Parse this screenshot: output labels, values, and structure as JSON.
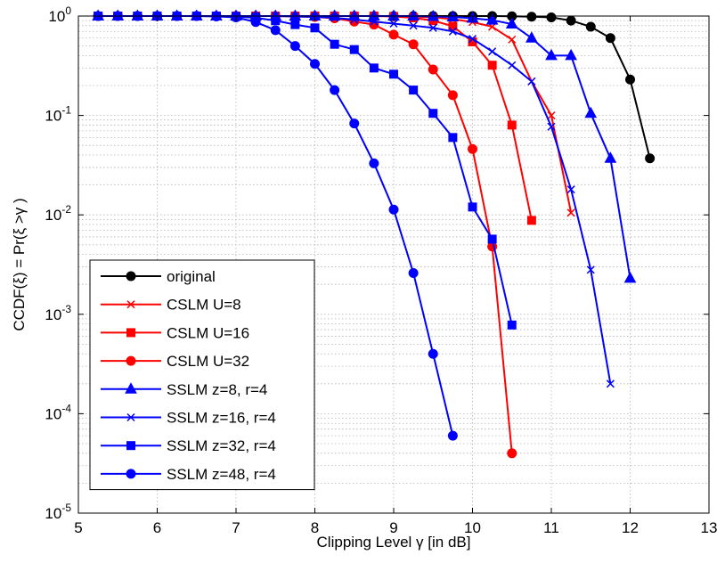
{
  "chart_data": {
    "type": "line",
    "xlabel": "Clipping Level γ [in dB]",
    "ylabel": "CCDF(ξ) = Pr(ξ >γ )",
    "xlim": [
      5,
      13
    ],
    "ylim": [
      1e-05,
      1
    ],
    "yscale": "log",
    "xticks": [
      "5",
      "6",
      "7",
      "8",
      "9",
      "10",
      "11",
      "12",
      "13"
    ],
    "yticks": [
      {
        "base": "10",
        "exp": "0"
      },
      {
        "base": "10",
        "exp": "-1"
      },
      {
        "base": "10",
        "exp": "-2"
      },
      {
        "base": "10",
        "exp": "-3"
      },
      {
        "base": "10",
        "exp": "-4"
      },
      {
        "base": "10",
        "exp": "-5"
      }
    ],
    "grid": true,
    "legend_position": "bottom-left",
    "series": [
      {
        "name": "original",
        "color": "#000000",
        "marker": "circle",
        "x": [
          5.25,
          5.5,
          5.75,
          6,
          6.25,
          6.5,
          6.75,
          7,
          7.25,
          7.5,
          7.75,
          8,
          8.25,
          8.5,
          8.75,
          9,
          9.25,
          9.5,
          9.75,
          10,
          10.25,
          10.5,
          10.75,
          11,
          11.25,
          11.5,
          11.75,
          12,
          12.25
        ],
        "y": [
          1,
          1,
          1,
          1,
          1,
          1,
          1,
          1,
          1,
          1,
          1,
          1,
          1,
          1,
          1,
          1,
          1,
          1,
          1,
          1,
          1,
          0.995,
          0.985,
          0.97,
          0.9,
          0.78,
          0.6,
          0.23,
          0.037
        ]
      },
      {
        "name": "CSLM U=8",
        "color": "#ff0000",
        "marker": "x",
        "x": [
          5.25,
          5.5,
          5.75,
          6,
          6.25,
          6.5,
          6.75,
          7,
          7.25,
          7.5,
          7.75,
          8,
          8.25,
          8.5,
          8.75,
          9,
          9.25,
          9.5,
          9.75,
          10,
          10.25,
          10.5,
          10.75,
          11,
          11.25
        ],
        "y": [
          1,
          1,
          1,
          1,
          1,
          1,
          1,
          1,
          1,
          1,
          1,
          1,
          1,
          1,
          1,
          1,
          0.99,
          0.97,
          0.93,
          0.87,
          0.78,
          0.58,
          0.22,
          0.1,
          0.0105
        ]
      },
      {
        "name": "CSLM U=16",
        "color": "#ff0000",
        "marker": "square",
        "x": [
          5.25,
          5.5,
          5.75,
          6,
          6.25,
          6.5,
          6.75,
          7,
          7.25,
          7.5,
          7.75,
          8,
          8.25,
          8.5,
          8.75,
          9,
          9.25,
          9.5,
          9.75,
          10,
          10.25,
          10.5,
          10.75
        ],
        "y": [
          1,
          1,
          1,
          1,
          1,
          1,
          1,
          1,
          1,
          1,
          1,
          1,
          1,
          1,
          1,
          0.99,
          0.96,
          0.9,
          0.79,
          0.55,
          0.32,
          0.08,
          0.0088
        ]
      },
      {
        "name": "CSLM U=32",
        "color": "#ff0000",
        "marker": "circle",
        "x": [
          5.25,
          5.5,
          5.75,
          6,
          6.25,
          6.5,
          6.75,
          7,
          7.25,
          7.5,
          7.75,
          8,
          8.25,
          8.5,
          8.75,
          9,
          9.25,
          9.5,
          9.75,
          10,
          10.25,
          10.5
        ],
        "y": [
          1,
          1,
          1,
          1,
          1,
          1,
          1,
          1,
          1,
          1,
          0.99,
          0.98,
          0.95,
          0.88,
          0.82,
          0.65,
          0.52,
          0.29,
          0.16,
          0.046,
          0.0048,
          4e-05
        ]
      },
      {
        "name": "SSLM z=8, r=4",
        "color": "#0000ff",
        "marker": "triangle",
        "x": [
          5.25,
          5.5,
          5.75,
          6,
          6.25,
          6.5,
          6.75,
          7,
          7.25,
          7.5,
          7.75,
          8,
          8.25,
          8.5,
          8.75,
          9,
          9.25,
          9.5,
          9.75,
          10,
          10.25,
          10.5,
          10.75,
          11,
          11.25,
          11.5,
          11.75,
          12
        ],
        "y": [
          1,
          1,
          1,
          1,
          1,
          1,
          1,
          1,
          1,
          1,
          1,
          1,
          1,
          1,
          1,
          1,
          1,
          0.99,
          0.98,
          0.95,
          0.91,
          0.83,
          0.6,
          0.4,
          0.4,
          0.105,
          0.037,
          0.0023
        ]
      },
      {
        "name": "SSLM z=16, r=4",
        "color": "#0000ff",
        "marker": "x",
        "x": [
          5.25,
          5.5,
          5.75,
          6,
          6.25,
          6.5,
          6.75,
          7,
          7.25,
          7.5,
          7.75,
          8,
          8.25,
          8.5,
          8.75,
          9,
          9.25,
          9.5,
          9.75,
          10,
          10.25,
          10.5,
          10.75,
          11,
          11.25,
          11.5,
          11.75
        ],
        "y": [
          1,
          1,
          1,
          1,
          1,
          1,
          1,
          1,
          1,
          1,
          0.99,
          0.98,
          0.96,
          0.92,
          0.88,
          0.84,
          0.8,
          0.76,
          0.7,
          0.59,
          0.44,
          0.32,
          0.22,
          0.077,
          0.018,
          0.0028,
          0.0002
        ]
      },
      {
        "name": "SSLM z=32, r=4",
        "color": "#0000ff",
        "marker": "square",
        "x": [
          5.25,
          5.5,
          5.75,
          6,
          6.25,
          6.5,
          6.75,
          7,
          7.25,
          7.5,
          7.75,
          8,
          8.25,
          8.5,
          8.75,
          9,
          9.25,
          9.5,
          9.75,
          10,
          10.25,
          10.5
        ],
        "y": [
          1,
          1,
          1,
          1,
          1,
          1,
          1,
          0.99,
          0.96,
          0.9,
          0.82,
          0.76,
          0.52,
          0.46,
          0.3,
          0.26,
          0.18,
          0.105,
          0.06,
          0.012,
          0.0057,
          0.00078
        ]
      },
      {
        "name": "SSLM z=48, r=4",
        "color": "#0000ff",
        "marker": "circle",
        "x": [
          5.25,
          5.5,
          5.75,
          6,
          6.25,
          6.5,
          6.75,
          7,
          7.25,
          7.5,
          7.75,
          8,
          8.25,
          8.5,
          8.75,
          9,
          9.25,
          9.5,
          9.75
        ],
        "y": [
          1,
          1,
          1,
          1,
          1,
          1,
          0.99,
          0.97,
          0.87,
          0.72,
          0.5,
          0.33,
          0.18,
          0.083,
          0.033,
          0.0113,
          0.0026,
          0.0004,
          6e-05
        ]
      }
    ]
  }
}
